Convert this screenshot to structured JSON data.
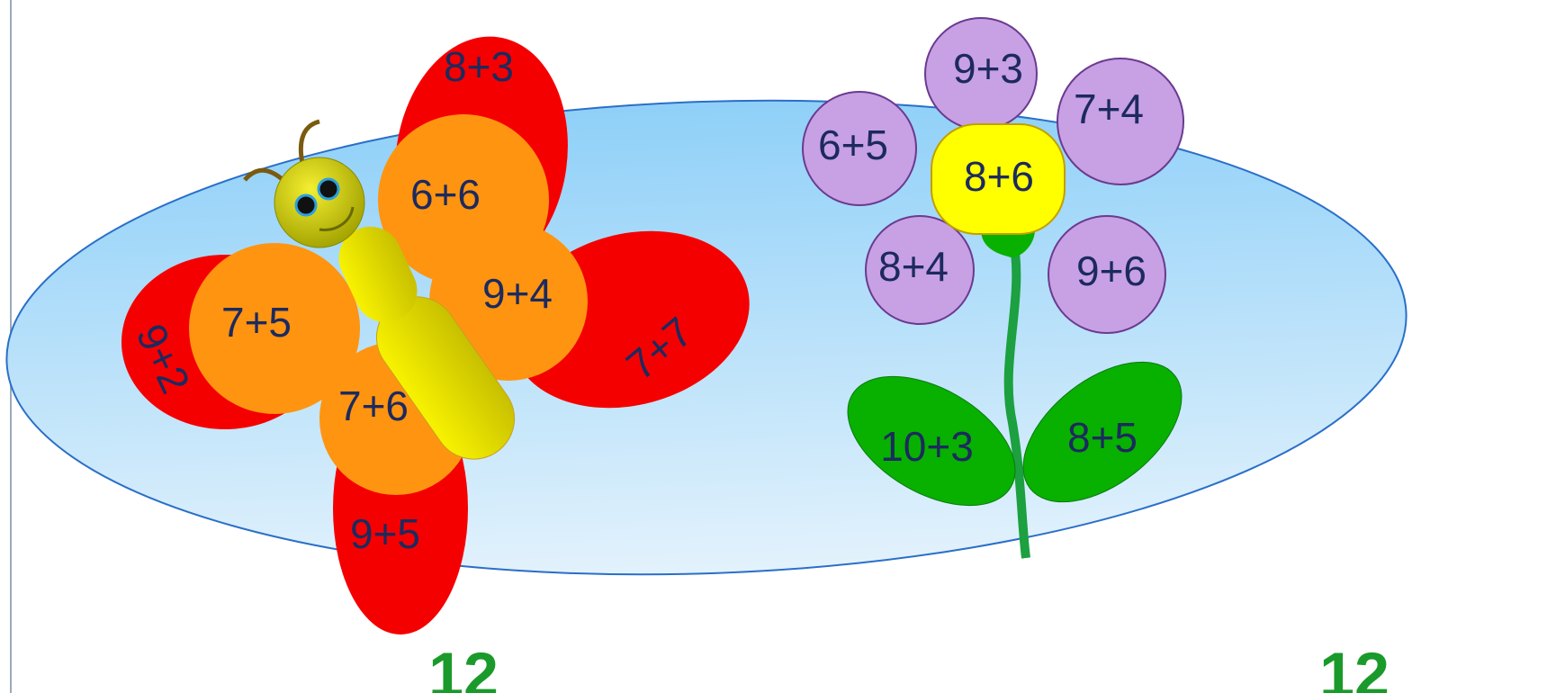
{
  "butterfly": {
    "wings": [
      "8+3",
      "6+6",
      "7+5",
      "9+2",
      "9+4",
      "7+7",
      "7+6",
      "9+5"
    ]
  },
  "flower": {
    "petals": [
      "9+3",
      "7+4",
      "6+5",
      "8+4",
      "9+6"
    ],
    "center": "8+6",
    "leaves": [
      "10+3",
      "8+5"
    ]
  },
  "captions": [
    "12",
    "12"
  ]
}
